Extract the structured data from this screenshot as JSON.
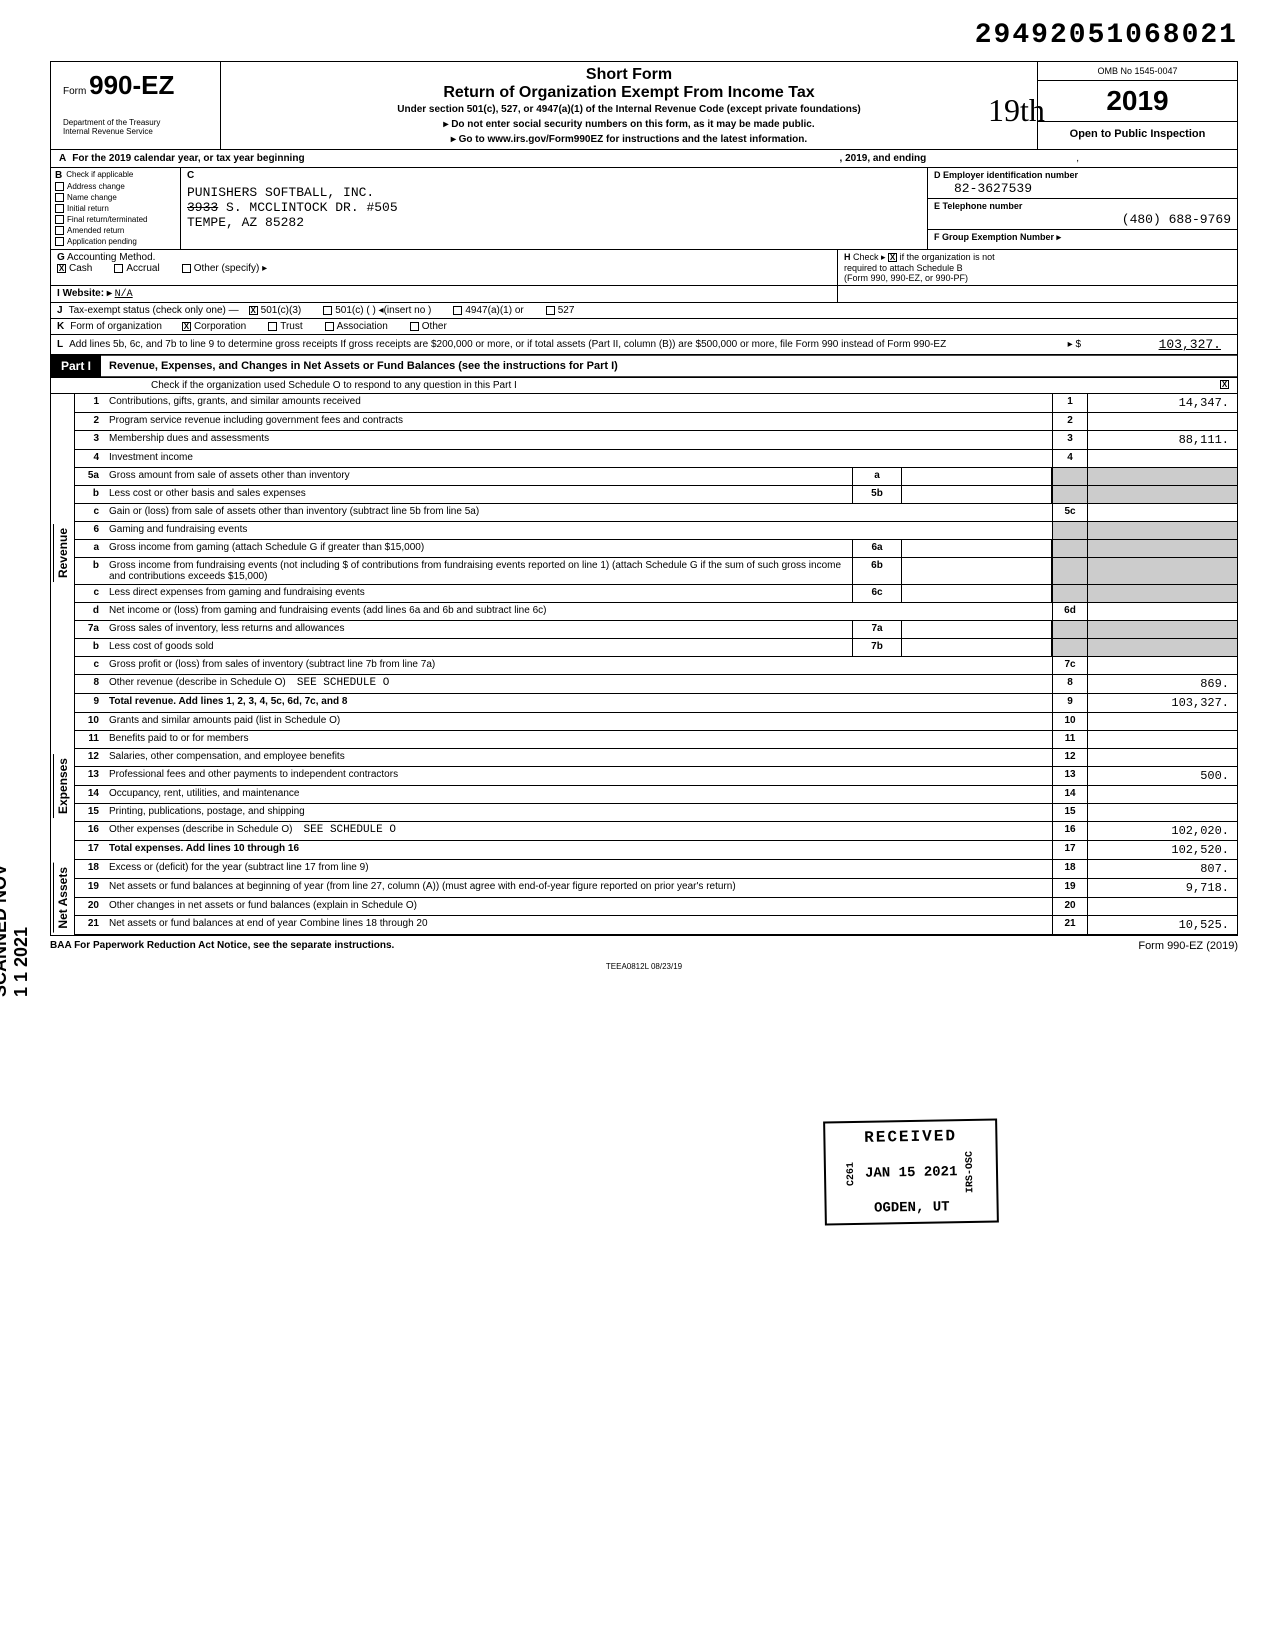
{
  "tracking_number": "29492051068021",
  "form": {
    "label": "Form",
    "number": "990-EZ",
    "dept1": "Department of the Treasury",
    "dept2": "Internal Revenue Service",
    "short_form": "Short Form",
    "title": "Return of Organization Exempt From Income Tax",
    "under": "Under section 501(c), 527, or 4947(a)(1) of the Internal Revenue Code (except private foundations)",
    "line1": "▸ Do not enter social security numbers on this form, as it may be made public.",
    "line2": "▸ Go to www.irs.gov/Form990EZ for instructions and the latest information.",
    "omb": "OMB No 1545-0047",
    "year": "2019",
    "open": "Open to Public Inspection",
    "handwritten": "19th"
  },
  "line_a": {
    "label": "A",
    "text": "For the 2019 calendar year, or tax year beginning",
    "mid": ", 2019, and ending",
    "end": ","
  },
  "section_b": {
    "label": "B",
    "heading": "Check if applicable",
    "items": [
      "Address change",
      "Name change",
      "Initial return",
      "Final return/terminated",
      "Amended return",
      "Application pending"
    ]
  },
  "section_c": {
    "label": "C",
    "name": "PUNISHERS SOFTBALL, INC.",
    "addr_strike": "3933",
    "addr_rest": "S. MCCLINTOCK DR. #505",
    "city": "TEMPE, AZ 85282"
  },
  "section_d": {
    "label": "D",
    "heading": "Employer identification number",
    "value": "82-3627539"
  },
  "section_e": {
    "label": "E",
    "heading": "Telephone number",
    "value": "(480) 688-9769"
  },
  "section_f": {
    "label": "F",
    "heading": "Group Exemption Number ▸",
    "value": ""
  },
  "line_g": {
    "label": "G",
    "text": "Accounting Method.",
    "opts": [
      "Cash",
      "Accrual",
      "Other (specify) ▸"
    ],
    "checked": "Cash"
  },
  "line_h": {
    "label": "H",
    "text1": "Check ▸",
    "text2": "if the organization is not",
    "text3": "required to attach Schedule B",
    "text4": "(Form 990, 990-EZ, or 990-PF)"
  },
  "line_i": {
    "label": "I",
    "text": "Website: ▸",
    "value": "N/A"
  },
  "line_j": {
    "label": "J",
    "text": "Tax-exempt status (check only one) —",
    "opts": [
      "501(c)(3)",
      "501(c) (        ) ◂(insert no )",
      "4947(a)(1) or",
      "527"
    ],
    "checked": "501(c)(3)"
  },
  "line_k": {
    "label": "K",
    "text": "Form of organization",
    "opts": [
      "Corporation",
      "Trust",
      "Association",
      "Other"
    ],
    "checked": "Corporation"
  },
  "line_l": {
    "label": "L",
    "text": "Add lines 5b, 6c, and 7b to line 9 to determine gross receipts  If gross receipts are $200,000 or more, or if total assets (Part II, column (B)) are $500,000 or more, file Form 990 instead of Form 990-EZ",
    "arrow": "▸ $",
    "value": "103,327."
  },
  "part1": {
    "label": "Part I",
    "title": "Revenue, Expenses, and Changes in Net Assets or Fund Balances (see the instructions for Part I)",
    "sub": "Check if the organization used Schedule O to respond to any question in this Part I",
    "checked": true
  },
  "sections": {
    "revenue": "Revenue",
    "expenses": "Expenses",
    "netassets": "Net Assets"
  },
  "rows": [
    {
      "n": "1",
      "desc": "Contributions, gifts, grants, and similar amounts received",
      "tn": "1",
      "tv": "14,347."
    },
    {
      "n": "2",
      "desc": "Program service revenue including government fees and contracts",
      "tn": "2",
      "tv": ""
    },
    {
      "n": "3",
      "desc": "Membership dues and assessments",
      "tn": "3",
      "tv": "88,111."
    },
    {
      "n": "4",
      "desc": "Investment income",
      "tn": "4",
      "tv": ""
    },
    {
      "n": "5a",
      "desc": "Gross amount from sale of assets other than inventory",
      "sb": "a",
      "sv": ""
    },
    {
      "n": "b",
      "desc": "Less  cost or other basis and sales expenses",
      "sb": "5b",
      "sv": ""
    },
    {
      "n": "c",
      "desc": "Gain or (loss) from sale of assets other than inventory (subtract line 5b from line 5a)",
      "tn": "5c",
      "tv": ""
    },
    {
      "n": "6",
      "desc": "Gaming and fundraising events"
    },
    {
      "n": "a",
      "desc": "Gross income from gaming (attach Schedule G if greater than $15,000)",
      "sb": "6a",
      "sv": ""
    },
    {
      "n": "b",
      "desc": "Gross income from fundraising events (not including $                      of contributions from fundraising events reported on line 1) (attach Schedule G if the sum of such gross income and contributions exceeds $15,000)",
      "sb": "6b",
      "sv": ""
    },
    {
      "n": "c",
      "desc": "Less  direct expenses from gaming and fundraising events",
      "sb": "6c",
      "sv": ""
    },
    {
      "n": "d",
      "desc": "Net income or (loss) from gaming and fundraising events (add lines 6a and 6b and subtract line 6c)",
      "tn": "6d",
      "tv": ""
    },
    {
      "n": "7a",
      "desc": "Gross sales of inventory, less returns and allowances",
      "sb": "7a",
      "sv": ""
    },
    {
      "n": "b",
      "desc": "Less  cost of goods sold",
      "sb": "7b",
      "sv": ""
    },
    {
      "n": "c",
      "desc": "Gross profit or (loss) from sales of inventory (subtract line 7b from line 7a)",
      "tn": "7c",
      "tv": ""
    },
    {
      "n": "8",
      "desc": "Other revenue (describe in Schedule O)",
      "note": "SEE SCHEDULE O",
      "tn": "8",
      "tv": "869."
    },
    {
      "n": "9",
      "desc": "Total revenue. Add lines 1, 2, 3, 4, 5c, 6d, 7c, and 8",
      "bold": true,
      "tn": "9",
      "tv": "103,327."
    }
  ],
  "exp_rows": [
    {
      "n": "10",
      "desc": "Grants and similar amounts paid (list in Schedule O)",
      "tn": "10",
      "tv": ""
    },
    {
      "n": "11",
      "desc": "Benefits paid to or for members",
      "tn": "11",
      "tv": ""
    },
    {
      "n": "12",
      "desc": "Salaries, other compensation, and employee benefits",
      "tn": "12",
      "tv": ""
    },
    {
      "n": "13",
      "desc": "Professional fees and other payments to independent contractors",
      "tn": "13",
      "tv": "500."
    },
    {
      "n": "14",
      "desc": "Occupancy, rent, utilities, and maintenance",
      "tn": "14",
      "tv": ""
    },
    {
      "n": "15",
      "desc": "Printing, publications, postage, and shipping",
      "tn": "15",
      "tv": ""
    },
    {
      "n": "16",
      "desc": "Other expenses (describe in Schedule O)",
      "note": "SEE SCHEDULE O",
      "tn": "16",
      "tv": "102,020."
    },
    {
      "n": "17",
      "desc": "Total expenses. Add lines 10 through 16",
      "bold": true,
      "tn": "17",
      "tv": "102,520."
    }
  ],
  "na_rows": [
    {
      "n": "18",
      "desc": "Excess or (deficit) for the year (subtract line 17 from line 9)",
      "tn": "18",
      "tv": "807."
    },
    {
      "n": "19",
      "desc": "Net assets or fund balances at beginning of year (from line 27, column (A)) (must agree with end-of-year figure reported on prior year's return)",
      "tn": "19",
      "tv": "9,718."
    },
    {
      "n": "20",
      "desc": "Other changes in net assets or fund balances (explain in Schedule O)",
      "tn": "20",
      "tv": ""
    },
    {
      "n": "21",
      "desc": "Net assets or fund balances at end of year  Combine lines 18 through 20",
      "tn": "21",
      "tv": "10,525."
    }
  ],
  "stamp": {
    "received": "RECEIVED",
    "date": "JAN 15 2021",
    "loc": "OGDEN, UT",
    "code1": "C261",
    "code2": "IRS-OSC"
  },
  "scanned": "SCANNED NOV 1 1 2021",
  "footer": {
    "left": "BAA  For Paperwork Reduction Act Notice, see the separate instructions.",
    "right": "Form 990-EZ (2019)",
    "code": "TEEA0812L   08/23/19"
  }
}
